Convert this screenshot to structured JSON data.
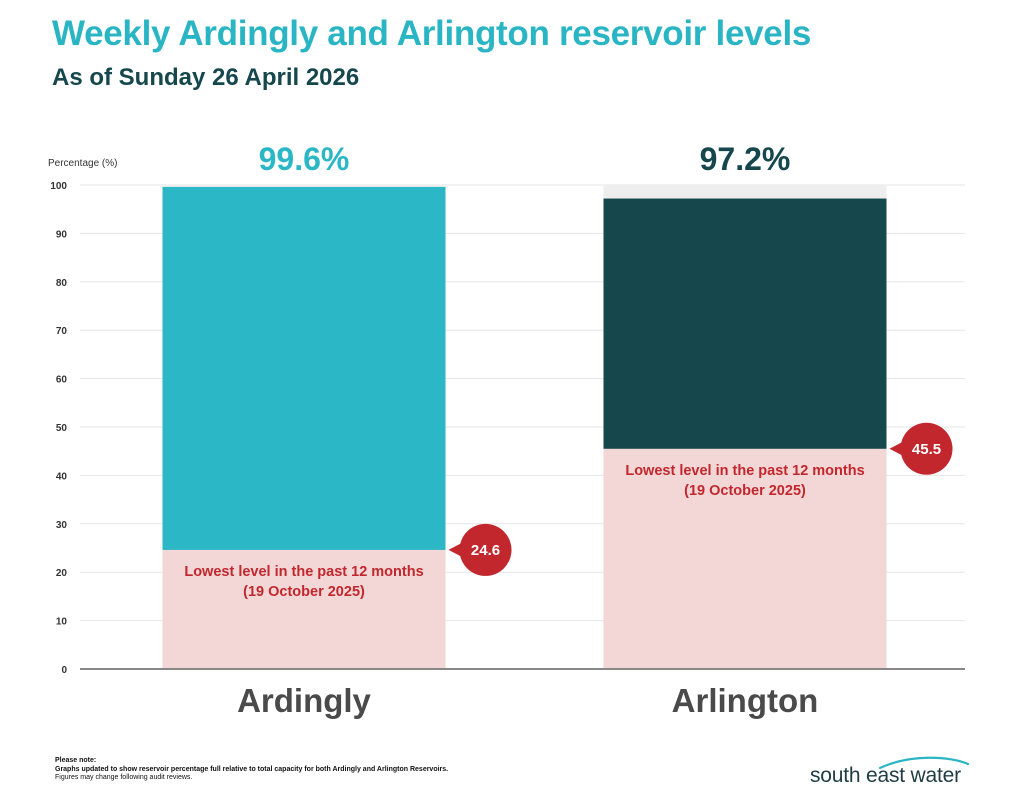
{
  "header": {
    "title": "Weekly Ardingly and Arlington reservoir levels",
    "subtitle": "As of Sunday 26 April 2026"
  },
  "chart_data": {
    "type": "bar",
    "ylabel": "Percentage (%)",
    "ylim": [
      0,
      100
    ],
    "yticks": [
      0,
      10,
      20,
      30,
      40,
      50,
      60,
      70,
      80,
      90,
      100
    ],
    "grid": true,
    "categories": [
      "Ardingly",
      "Arlington"
    ],
    "values": [
      99.6,
      97.2
    ],
    "value_labels": [
      "99.6%",
      "97.2%"
    ],
    "colors": [
      "#2cb7c7",
      "#15474c"
    ],
    "value_label_colors": [
      "#2cb7c7",
      "#15474c"
    ],
    "lowest_levels": [
      24.6,
      45.5
    ],
    "lowest_label_values": [
      "24.6",
      "45.5"
    ],
    "lowest_label_lines": [
      "Lowest level in the past 12 months",
      "(19 October 2025)"
    ],
    "lowest_color": "#c1272d",
    "lowest_fill": "#f3d6d6",
    "capacity_fill": "#eeeeee"
  },
  "footer": {
    "note_title": "Please note:",
    "note_line1": "Graphs updated to show reservoir percentage full relative to total capacity for both Ardingly and Arlington Reservoirs.",
    "note_line2": "Figures may change following audit reviews.",
    "logo_text": "south east water"
  }
}
